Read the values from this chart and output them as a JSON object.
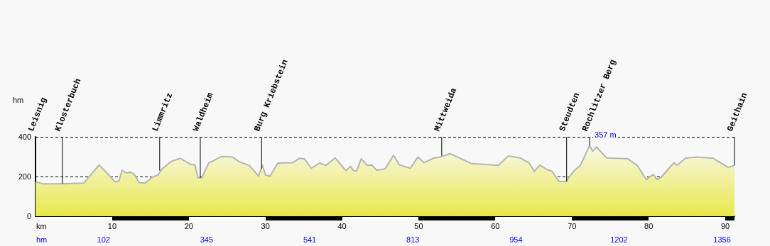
{
  "chart_data": {
    "type": "area",
    "ylabel": "hm",
    "xlabel": "km",
    "x2label": "hm",
    "xlim": [
      0,
      91.2
    ],
    "xticks": [
      10,
      20,
      30,
      40,
      50,
      60,
      70,
      80,
      90
    ],
    "ylim": [
      0,
      400
    ],
    "yticks": [
      0,
      200,
      400
    ],
    "grid": "y",
    "line_style": "solid",
    "series": [
      {
        "color": "#b4b4b4",
        "x": [
          0,
          1.0,
          3.5,
          6.3,
          7.2,
          8.3,
          9.7,
          10.4,
          10.9,
          11.3,
          11.8,
          12.4,
          12.9,
          13.5,
          14.3,
          15.2,
          16.0,
          16.5,
          17.7,
          18.9,
          20.2,
          20.8,
          21.2,
          21.7,
          22.6,
          24.3,
          25.7,
          26.6,
          27.9,
          29.1,
          29.6,
          30.0,
          30.6,
          31.6,
          33.6,
          34.4,
          35.1,
          36.0,
          37.1,
          37.9,
          39.1,
          40.5,
          41.1,
          41.5,
          41.9,
          42.5,
          43.3,
          43.9,
          44.5,
          45.6,
          46.7,
          47.5,
          48.9,
          49.9,
          50.7,
          51.9,
          52.8,
          54.1,
          55.3,
          56.9,
          59.7,
          60.4,
          61.7,
          63.2,
          64.4,
          65.1,
          65.8,
          66.6,
          67.4,
          68.3,
          69.2,
          70.3,
          71.1,
          72.3,
          72.7,
          73.2,
          74.5,
          77.3,
          78.5,
          79.7,
          80.6,
          81.1,
          81.7,
          83.3,
          83.7,
          84.8,
          86.2,
          88.4,
          90.4,
          91.2
        ],
        "values": [
          173,
          163,
          163,
          167,
          208,
          258,
          202,
          173,
          179,
          232,
          218,
          222,
          211,
          170,
          167,
          196,
          208,
          238,
          276,
          292,
          262,
          258,
          194,
          194,
          268,
          301,
          298,
          274,
          256,
          202,
          258,
          208,
          202,
          268,
          270,
          292,
          289,
          242,
          268,
          256,
          294,
          230,
          252,
          229,
          229,
          289,
          256,
          258,
          232,
          238,
          306,
          258,
          242,
          298,
          270,
          292,
          298,
          315,
          294,
          265,
          258,
          256,
          304,
          294,
          268,
          226,
          258,
          238,
          226,
          175,
          175,
          230,
          256,
          357,
          327,
          349,
          294,
          289,
          256,
          185,
          211,
          185,
          199,
          270,
          256,
          292,
          298,
          292,
          246,
          256
        ],
        "value_labels": [
          null,
          null,
          null,
          null,
          null,
          null,
          null,
          null,
          null,
          null,
          null,
          null,
          null,
          null,
          null,
          null,
          null,
          null,
          null,
          null,
          null,
          null,
          null,
          null,
          null,
          null,
          null,
          null,
          null,
          null,
          null,
          null,
          null,
          null,
          null,
          null,
          null,
          null,
          null,
          null,
          null,
          null,
          null,
          null,
          null,
          null,
          null,
          null,
          null,
          null,
          null,
          null,
          null,
          null,
          null,
          null,
          null,
          null,
          null,
          null,
          null,
          null,
          null,
          null,
          null,
          null,
          null,
          null,
          null,
          null,
          null,
          null,
          null,
          "357 m",
          null,
          null,
          null,
          null,
          null,
          null,
          null,
          null,
          null,
          null,
          null,
          null,
          null,
          null,
          null,
          null
        ]
      }
    ],
    "annotations": [
      "102",
      "345",
      "541",
      "813",
      "954",
      "1202",
      "1356",
      {
        "text": "Leisnig",
        "x": 0,
        "y": 173
      },
      {
        "text": "Klosterbuch",
        "x": 3.5,
        "y": 163
      },
      {
        "text": "Limmritz",
        "x": 16.2,
        "y": 230
      },
      {
        "text": "Waldheim",
        "x": 21.5,
        "y": 194
      },
      {
        "text": "Burg Kriebstein",
        "x": 29.5,
        "y": 240
      },
      {
        "text": "Mittweida",
        "x": 53.0,
        "y": 305
      },
      {
        "text": "Steudten",
        "x": 69.3,
        "y": 175
      },
      {
        "text": "Rochlitzer Berg",
        "x": 72.3,
        "y": 357
      },
      {
        "text": "Geithain",
        "x": 91.2,
        "y": 256
      }
    ]
  }
}
